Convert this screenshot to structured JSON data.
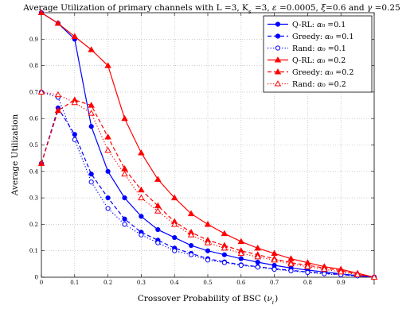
{
  "chart_data": {
    "type": "line",
    "title": "Average Utilization of primary channels with L =3, K_s =3, ε =0.0005, ξ=0.6 and γ =0.25",
    "xlabel": "Crossover Probability of BSC (ν_i)",
    "ylabel": "Average Utilization",
    "xlim": [
      0,
      1
    ],
    "ylim": [
      0,
      1
    ],
    "grid": true,
    "legend_position": "top-right",
    "x": [
      0,
      0.05,
      0.1,
      0.15,
      0.2,
      0.25,
      0.3,
      0.35,
      0.4,
      0.45,
      0.5,
      0.55,
      0.6,
      0.65,
      0.7,
      0.75,
      0.8,
      0.85,
      0.9,
      0.95,
      1.0
    ],
    "xticks": [
      0,
      0.1,
      0.2,
      0.3,
      0.4,
      0.5,
      0.6,
      0.7,
      0.8,
      0.9,
      1
    ],
    "yticks": [
      0,
      0.1,
      0.2,
      0.3,
      0.4,
      0.5,
      0.6,
      0.7,
      0.8,
      0.9
    ],
    "series": [
      {
        "name": "Q-RL: α₀ =0.1",
        "color": "#0000ff",
        "line": "solid",
        "marker": "filled-circle",
        "values": [
          1.0,
          0.96,
          0.9,
          0.57,
          0.4,
          0.3,
          0.23,
          0.18,
          0.15,
          0.12,
          0.1,
          0.085,
          0.07,
          0.057,
          0.045,
          0.035,
          0.027,
          0.02,
          0.013,
          0.006,
          0.0
        ]
      },
      {
        "name": "Greedy: α₀ =0.1",
        "color": "#0000ff",
        "line": "dashed",
        "marker": "filled-circle",
        "values": [
          0.43,
          0.64,
          0.54,
          0.39,
          0.3,
          0.22,
          0.17,
          0.14,
          0.11,
          0.09,
          0.07,
          0.058,
          0.047,
          0.04,
          0.032,
          0.026,
          0.02,
          0.015,
          0.01,
          0.005,
          0.0
        ]
      },
      {
        "name": "Rand: α₀ =0.1",
        "color": "#0000ff",
        "line": "dotted",
        "marker": "open-circle",
        "values": [
          0.7,
          0.68,
          0.52,
          0.36,
          0.26,
          0.2,
          0.16,
          0.13,
          0.1,
          0.085,
          0.065,
          0.055,
          0.045,
          0.038,
          0.03,
          0.024,
          0.018,
          0.013,
          0.009,
          0.005,
          0.0
        ]
      },
      {
        "name": "Q-RL: α₀ =0.2",
        "color": "#ff0000",
        "line": "solid",
        "marker": "filled-triangle",
        "values": [
          1.0,
          0.96,
          0.91,
          0.86,
          0.8,
          0.6,
          0.47,
          0.37,
          0.3,
          0.24,
          0.2,
          0.165,
          0.135,
          0.11,
          0.09,
          0.07,
          0.055,
          0.04,
          0.03,
          0.015,
          0.0
        ]
      },
      {
        "name": "Greedy: α₀ =0.2",
        "color": "#ff0000",
        "line": "dashed",
        "marker": "filled-triangle",
        "values": [
          0.43,
          0.63,
          0.67,
          0.65,
          0.53,
          0.41,
          0.33,
          0.27,
          0.21,
          0.17,
          0.14,
          0.12,
          0.1,
          0.085,
          0.07,
          0.055,
          0.045,
          0.035,
          0.025,
          0.012,
          0.0
        ]
      },
      {
        "name": "Rand: α₀ =0.2",
        "color": "#ff0000",
        "line": "dotted",
        "marker": "open-triangle",
        "values": [
          0.7,
          0.69,
          0.66,
          0.62,
          0.48,
          0.39,
          0.3,
          0.25,
          0.2,
          0.16,
          0.13,
          0.11,
          0.09,
          0.077,
          0.065,
          0.05,
          0.04,
          0.03,
          0.02,
          0.01,
          0.0
        ]
      }
    ]
  }
}
